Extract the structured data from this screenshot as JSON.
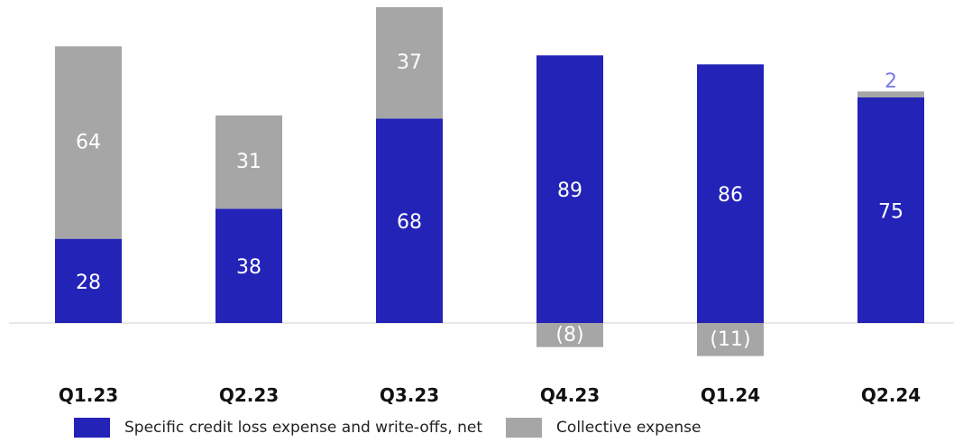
{
  "chart_data": {
    "type": "bar",
    "stacked": true,
    "categories": [
      "Q1.23",
      "Q2.23",
      "Q3.23",
      "Q4.23",
      "Q1.24",
      "Q2.24"
    ],
    "series": [
      {
        "name": "Specific credit loss expense and write-offs, net",
        "values": [
          28,
          38,
          68,
          89,
          86,
          75
        ],
        "labels": [
          "28",
          "38",
          "68",
          "89",
          "86",
          "75"
        ],
        "color": "#2323b8"
      },
      {
        "name": "Collective expense",
        "values": [
          64,
          31,
          37,
          -8,
          -11,
          2
        ],
        "labels": [
          "64",
          "31",
          "37",
          "(8)",
          "(11)",
          "2"
        ],
        "color": "#a6a6a6"
      }
    ],
    "ylim": [
      -12,
      105
    ],
    "grid": false,
    "legend": "bottom",
    "label_colors": {
      "on_bar": "#ffffff",
      "above_bar": "#7b7be8"
    }
  }
}
